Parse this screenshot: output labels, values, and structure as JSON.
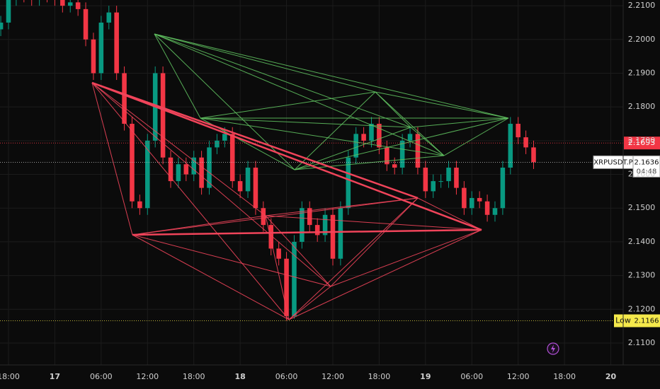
{
  "chart_data": {
    "type": "candlestick",
    "symbol": "XRPUSDT.P",
    "up_color": "#089981",
    "down_color": "#f23645",
    "grid": true,
    "xlim": [
      -0.1,
      80.6
    ],
    "ylim": [
      2.1035,
      2.2117
    ],
    "xticks": [
      {
        "value": 1,
        "label": "18:00"
      },
      {
        "value": 7,
        "label": "17"
      },
      {
        "value": 13,
        "label": "06:00"
      },
      {
        "value": 19,
        "label": "12:00"
      },
      {
        "value": 25,
        "label": "18:00"
      },
      {
        "value": 31,
        "label": "18"
      },
      {
        "value": 37,
        "label": "06:00"
      },
      {
        "value": 43,
        "label": "12:00"
      },
      {
        "value": 49,
        "label": "18:00"
      },
      {
        "value": 55,
        "label": "19"
      },
      {
        "value": 61,
        "label": "06:00"
      },
      {
        "value": 67,
        "label": "12:00"
      },
      {
        "value": 73,
        "label": "18:00"
      },
      {
        "value": 79,
        "label": "20"
      }
    ],
    "yticks": [
      {
        "value": 2.11,
        "label": "2.1100"
      },
      {
        "value": 2.12,
        "label": "2.1200"
      },
      {
        "value": 2.13,
        "label": "2.1300"
      },
      {
        "value": 2.14,
        "label": "2.1400"
      },
      {
        "value": 2.15,
        "label": "2.1500"
      },
      {
        "value": 2.16,
        "label": "2.1600"
      },
      {
        "value": 2.17,
        "label": "2.1700"
      },
      {
        "value": 2.18,
        "label": "2.1800"
      },
      {
        "value": 2.19,
        "label": "2.1900"
      },
      {
        "value": 2.2,
        "label": "2.2000"
      },
      {
        "value": 2.21,
        "label": "2.2100"
      }
    ],
    "open": [
      2.203,
      2.205,
      2.212,
      2.215,
      2.213,
      2.212,
      2.214,
      2.213,
      2.212,
      2.21,
      2.211,
      2.209,
      2.2,
      2.19,
      2.205,
      2.208,
      2.19,
      2.175,
      2.152,
      2.15,
      2.17,
      2.19,
      2.165,
      2.158,
      2.163,
      2.16,
      2.165,
      2.156,
      2.168,
      2.17,
      2.172,
      2.158,
      2.155,
      2.162,
      2.15,
      2.145,
      2.138,
      2.135,
      2.118,
      2.14,
      2.15,
      2.145,
      2.142,
      2.148,
      2.135,
      2.15,
      2.165,
      2.172,
      2.17,
      2.175,
      2.168,
      2.163,
      2.162,
      2.17,
      2.172,
      2.162,
      2.155,
      2.158,
      2.158,
      2.162,
      2.156,
      2.15,
      2.153,
      2.152,
      2.148,
      2.15,
      2.162,
      2.175,
      2.171,
      2.168
    ],
    "high": [
      2.207,
      2.214,
      2.217,
      2.217,
      2.215,
      2.216,
      2.216,
      2.215,
      2.214,
      2.213,
      2.213,
      2.211,
      2.202,
      2.207,
      2.21,
      2.21,
      2.192,
      2.177,
      2.154,
      2.172,
      2.192,
      2.192,
      2.167,
      2.165,
      2.165,
      2.167,
      2.167,
      2.17,
      2.172,
      2.174,
      2.174,
      2.16,
      2.164,
      2.164,
      2.152,
      2.147,
      2.14,
      2.137,
      2.142,
      2.152,
      2.152,
      2.147,
      2.15,
      2.15,
      2.152,
      2.167,
      2.174,
      2.174,
      2.177,
      2.177,
      2.17,
      2.165,
      2.172,
      2.174,
      2.174,
      2.164,
      2.16,
      2.16,
      2.164,
      2.164,
      2.158,
      2.155,
      2.155,
      2.154,
      2.152,
      2.164,
      2.177,
      2.177,
      2.173,
      2.17
    ],
    "low": [
      2.201,
      2.203,
      2.21,
      2.211,
      2.21,
      2.21,
      2.211,
      2.21,
      2.208,
      2.208,
      2.207,
      2.198,
      2.188,
      2.188,
      2.203,
      2.188,
      2.173,
      2.15,
      2.148,
      2.148,
      2.168,
      2.163,
      2.156,
      2.156,
      2.158,
      2.158,
      2.154,
      2.154,
      2.166,
      2.168,
      2.156,
      2.153,
      2.153,
      2.148,
      2.143,
      2.136,
      2.133,
      2.1166,
      2.1172,
      2.138,
      2.143,
      2.14,
      2.14,
      2.133,
      2.133,
      2.148,
      2.163,
      2.168,
      2.168,
      2.166,
      2.161,
      2.16,
      2.16,
      2.168,
      2.16,
      2.153,
      2.153,
      2.156,
      2.156,
      2.154,
      2.148,
      2.148,
      2.15,
      2.146,
      2.146,
      2.148,
      2.16,
      2.169,
      2.166,
      2.1616
    ],
    "close": [
      2.205,
      2.212,
      2.215,
      2.213,
      2.212,
      2.214,
      2.213,
      2.212,
      2.21,
      2.211,
      2.209,
      2.2,
      2.19,
      2.205,
      2.208,
      2.19,
      2.175,
      2.152,
      2.15,
      2.17,
      2.19,
      2.165,
      2.158,
      2.163,
      2.16,
      2.165,
      2.156,
      2.168,
      2.17,
      2.172,
      2.158,
      2.155,
      2.162,
      2.15,
      2.145,
      2.138,
      2.135,
      2.118,
      2.14,
      2.15,
      2.145,
      2.142,
      2.148,
      2.135,
      2.15,
      2.165,
      2.172,
      2.17,
      2.175,
      2.168,
      2.163,
      2.162,
      2.17,
      2.172,
      2.162,
      2.155,
      2.158,
      2.158,
      2.162,
      2.156,
      2.15,
      2.153,
      2.152,
      2.148,
      2.15,
      2.162,
      2.175,
      2.171,
      2.168,
      2.1636
    ],
    "prev_level": {
      "value": 2.1693,
      "label": "2.1693",
      "color": "#f23645"
    },
    "last_price": {
      "value": 2.1636,
      "label": "2.1636",
      "countdown": "04:48"
    },
    "low_level": {
      "text": "Low",
      "value": 2.1166,
      "label": "2.1166",
      "color": "#f5e94b"
    }
  }
}
